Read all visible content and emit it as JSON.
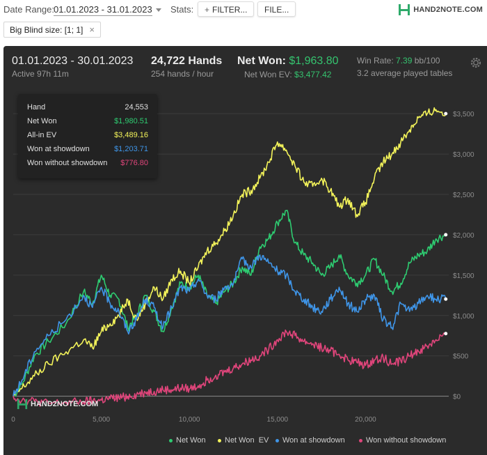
{
  "topbar": {
    "date_label": "Date Range:",
    "date_value": "01.01.2023 - 31.01.2023",
    "stats_label": "Stats:",
    "filter_label": "FILTER...",
    "file_label": "FILE...",
    "logo_text": "HAND2NOTE.COM"
  },
  "filter_chip": {
    "label": "Big Blind size: [1; 1]",
    "close": "×"
  },
  "summary": {
    "period": "01.01.2023 - 30.01.2023",
    "active": "Active 97h 11m",
    "hands": "24,722 Hands",
    "rate": "254 hands / hour",
    "net_won_label": "Net Won:",
    "net_won_value": "$1,963.80",
    "net_won_ev_label": "Net Won  EV:",
    "net_won_ev_value": "$3,477.42",
    "win_rate_label": "Win Rate:",
    "win_rate_value": "7.39",
    "win_rate_unit": "bb/100",
    "tables": "3.2 average played tables"
  },
  "tooltip": {
    "rows": [
      {
        "label": "Hand",
        "value": "24,553",
        "color": "#e0e0e0"
      },
      {
        "label": "Net Won",
        "value": "$1,980.51",
        "color": "#2ecc71"
      },
      {
        "label": "All-in EV",
        "value": "$3,489.16",
        "color": "#f3f35a"
      },
      {
        "label": "Won at showdown",
        "value": "$1,203.71",
        "color": "#3f95e8"
      },
      {
        "label": "Won without showdown",
        "value": "$776.80",
        "color": "#e0457b"
      }
    ]
  },
  "watermark": "HAND2NOTE.COM",
  "chart_data": {
    "type": "line",
    "xlim": [
      0,
      24722
    ],
    "ylim": [
      -150,
      3700
    ],
    "x_ticks": [
      0,
      5000,
      10000,
      15000,
      20000
    ],
    "x_tick_labels": [
      "0",
      "5,000",
      "10,000",
      "15,000",
      "20,000"
    ],
    "y_ticks": [
      0,
      500,
      1000,
      1500,
      2000,
      2500,
      3000,
      3500
    ],
    "y_tick_labels": [
      "$0",
      "$500",
      "$1,000",
      "$1,500",
      "$2,000",
      "$2,500",
      "$3,000",
      "$3,500"
    ],
    "grid": true,
    "legend_position": "bottom-right",
    "series": [
      {
        "name": "Net Won",
        "color": "#2ecc71",
        "x": [
          0,
          500,
          1200,
          2000,
          3000,
          4000,
          4500,
          5000,
          5500,
          6000,
          6500,
          7000,
          7500,
          8000,
          8500,
          9000,
          9500,
          10000,
          10500,
          11000,
          11500,
          12000,
          12500,
          13000,
          13500,
          14000,
          14500,
          15000,
          15500,
          16000,
          16500,
          17000,
          17500,
          18000,
          18500,
          19000,
          19500,
          20000,
          20500,
          21000,
          21500,
          22000,
          22500,
          23000,
          23500,
          24000,
          24553
        ],
        "y": [
          0,
          150,
          500,
          680,
          900,
          1300,
          1150,
          1500,
          1250,
          1200,
          850,
          1000,
          1250,
          1050,
          800,
          1100,
          1400,
          1350,
          1500,
          1250,
          1150,
          1300,
          1400,
          1600,
          1500,
          1850,
          1950,
          2150,
          2300,
          1900,
          1750,
          1650,
          1500,
          1600,
          1750,
          1500,
          1400,
          1500,
          1700,
          1500,
          1300,
          1400,
          1650,
          1750,
          1800,
          1950,
          2000
        ]
      },
      {
        "name": "Net Won  EV",
        "color": "#f3f35a",
        "x": [
          0,
          500,
          1200,
          2000,
          3000,
          4000,
          4500,
          5000,
          5500,
          6000,
          6500,
          7000,
          7500,
          8000,
          8500,
          9000,
          9500,
          10000,
          10500,
          11000,
          11500,
          12000,
          12500,
          13000,
          13500,
          14000,
          14500,
          15000,
          15500,
          16000,
          16500,
          17000,
          17500,
          18000,
          18500,
          19000,
          19500,
          20000,
          20500,
          21000,
          21500,
          22000,
          22500,
          23000,
          23500,
          24000,
          24553
        ],
        "y": [
          0,
          100,
          250,
          400,
          550,
          700,
          600,
          800,
          900,
          1000,
          1200,
          950,
          1150,
          1350,
          1200,
          1450,
          1550,
          1400,
          1600,
          1800,
          1900,
          2050,
          2250,
          2500,
          2550,
          2700,
          2900,
          3150,
          3050,
          2850,
          2650,
          2600,
          2700,
          2550,
          2350,
          2450,
          2250,
          2400,
          2700,
          2900,
          3000,
          3150,
          3300,
          3450,
          3500,
          3550,
          3500
        ]
      },
      {
        "name": "Won at showdown",
        "color": "#3f95e8",
        "x": [
          0,
          500,
          1200,
          2000,
          3000,
          4000,
          4500,
          5000,
          5500,
          6000,
          6500,
          7000,
          7500,
          8000,
          8500,
          9000,
          9500,
          10000,
          10500,
          11000,
          11500,
          12000,
          12500,
          13000,
          13500,
          14000,
          14500,
          15000,
          15500,
          16000,
          16500,
          17000,
          17500,
          18000,
          18500,
          19000,
          19500,
          20000,
          20500,
          21000,
          21500,
          22000,
          22500,
          23000,
          23500,
          24000,
          24553
        ],
        "y": [
          0,
          200,
          550,
          750,
          950,
          1250,
          1100,
          1350,
          1150,
          1050,
          800,
          950,
          1200,
          1100,
          850,
          1100,
          1350,
          1300,
          1450,
          1250,
          1200,
          1350,
          1400,
          1700,
          1600,
          1750,
          1650,
          1550,
          1500,
          1300,
          1200,
          1100,
          1050,
          1200,
          1350,
          1150,
          1050,
          1200,
          1250,
          950,
          850,
          1150,
          1050,
          1150,
          1250,
          1200,
          1203
        ]
      },
      {
        "name": "Won without showdown",
        "color": "#e0457b",
        "x": [
          0,
          500,
          1200,
          2000,
          3000,
          4000,
          4500,
          5000,
          5500,
          6000,
          6500,
          7000,
          7500,
          8000,
          8500,
          9000,
          9500,
          10000,
          10500,
          11000,
          11500,
          12000,
          12500,
          13000,
          13500,
          14000,
          14500,
          15000,
          15500,
          16000,
          16500,
          17000,
          17500,
          18000,
          18500,
          19000,
          19500,
          20000,
          20500,
          21000,
          21500,
          22000,
          22500,
          23000,
          23500,
          24000,
          24553
        ],
        "y": [
          0,
          -50,
          -60,
          -90,
          -80,
          -70,
          -60,
          -50,
          -30,
          -20,
          0,
          20,
          50,
          60,
          80,
          80,
          100,
          90,
          130,
          200,
          260,
          300,
          350,
          400,
          450,
          500,
          580,
          700,
          800,
          750,
          680,
          650,
          600,
          560,
          520,
          450,
          420,
          380,
          450,
          480,
          400,
          440,
          500,
          560,
          620,
          700,
          776
        ]
      }
    ]
  }
}
